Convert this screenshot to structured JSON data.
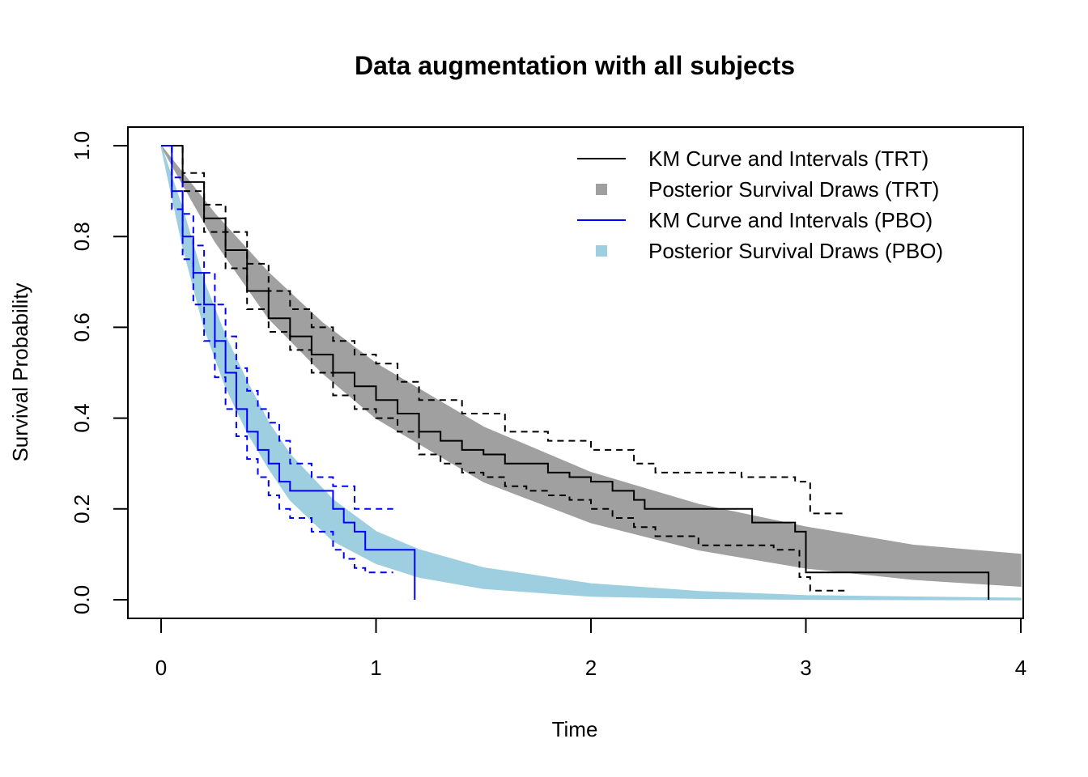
{
  "chart_data": {
    "type": "line",
    "title": "Data augmentation with all subjects",
    "xlabel": "Time",
    "ylabel": "Survival Probability",
    "xlim": [
      0,
      4
    ],
    "ylim": [
      0,
      1
    ],
    "x_ticks": [
      "0",
      "1",
      "2",
      "3",
      "4"
    ],
    "y_ticks": [
      "0.0",
      "0.2",
      "0.4",
      "0.6",
      "0.8",
      "1.0"
    ],
    "grid": false,
    "legend_position": "top-right",
    "legend": [
      {
        "label": "KM Curve and Intervals (TRT)",
        "symbol": "line",
        "color": "#000000"
      },
      {
        "label": "Posterior Survival Draws (TRT)",
        "symbol": "square",
        "color": "#A0A0A0"
      },
      {
        "label": "KM Curve and Intervals (PBO)",
        "symbol": "line",
        "color": "#0000FF"
      },
      {
        "label": "Posterior Survival Draws (PBO)",
        "symbol": "square",
        "color": "#9ECFE0"
      }
    ],
    "series": [
      {
        "name": "Posterior Survival Draws (TRT)",
        "kind": "band",
        "color": "#A0A0A0",
        "x": [
          0,
          0.25,
          0.5,
          0.75,
          1.0,
          1.5,
          2.0,
          2.5,
          3.0,
          3.5,
          4.0
        ],
        "lower": [
          1.0,
          0.79,
          0.62,
          0.5,
          0.4,
          0.26,
          0.17,
          0.11,
          0.07,
          0.045,
          0.03
        ],
        "upper": [
          1.0,
          0.85,
          0.72,
          0.61,
          0.52,
          0.38,
          0.28,
          0.21,
          0.16,
          0.12,
          0.1
        ]
      },
      {
        "name": "Posterior Survival Draws (PBO)",
        "kind": "band",
        "color": "#9ECFE0",
        "x": [
          0,
          0.1,
          0.2,
          0.3,
          0.4,
          0.5,
          0.6,
          0.8,
          1.0,
          1.2,
          1.5,
          2.0,
          2.5,
          3.0,
          4.0
        ],
        "lower": [
          1.0,
          0.78,
          0.6,
          0.47,
          0.37,
          0.29,
          0.22,
          0.13,
          0.08,
          0.05,
          0.025,
          0.008,
          0.003,
          0.001,
          0
        ],
        "upper": [
          1.0,
          0.86,
          0.7,
          0.58,
          0.48,
          0.39,
          0.32,
          0.22,
          0.15,
          0.11,
          0.07,
          0.035,
          0.018,
          0.009,
          0.003
        ]
      },
      {
        "name": "KM Curve (TRT)",
        "kind": "step",
        "color": "#000000",
        "dash": false,
        "x": [
          0,
          0.1,
          0.2,
          0.3,
          0.4,
          0.5,
          0.6,
          0.7,
          0.8,
          0.9,
          1.0,
          1.1,
          1.2,
          1.3,
          1.4,
          1.5,
          1.6,
          1.7,
          1.8,
          1.9,
          2.0,
          2.1,
          2.2,
          2.25,
          2.5,
          2.75,
          2.95,
          3.0,
          3.85,
          3.85
        ],
        "y": [
          1.0,
          0.92,
          0.84,
          0.77,
          0.68,
          0.62,
          0.58,
          0.54,
          0.5,
          0.47,
          0.44,
          0.41,
          0.37,
          0.35,
          0.33,
          0.32,
          0.3,
          0.3,
          0.28,
          0.27,
          0.26,
          0.24,
          0.22,
          0.2,
          0.2,
          0.17,
          0.15,
          0.06,
          0.06,
          0.0
        ]
      },
      {
        "name": "KM Upper Interval (TRT)",
        "kind": "step",
        "color": "#000000",
        "dash": true,
        "x": [
          0,
          0.1,
          0.2,
          0.3,
          0.4,
          0.5,
          0.6,
          0.7,
          0.8,
          0.9,
          1.0,
          1.1,
          1.2,
          1.4,
          1.6,
          1.8,
          2.0,
          2.2,
          2.3,
          2.5,
          2.7,
          2.95,
          3.02,
          3.18
        ],
        "y": [
          1.0,
          0.94,
          0.87,
          0.81,
          0.74,
          0.68,
          0.64,
          0.6,
          0.57,
          0.54,
          0.52,
          0.48,
          0.44,
          0.41,
          0.37,
          0.35,
          0.33,
          0.3,
          0.28,
          0.28,
          0.27,
          0.26,
          0.19,
          0.19
        ]
      },
      {
        "name": "KM Lower Interval (TRT)",
        "kind": "step",
        "color": "#000000",
        "dash": true,
        "x": [
          0,
          0.1,
          0.2,
          0.3,
          0.4,
          0.5,
          0.6,
          0.7,
          0.8,
          0.9,
          1.0,
          1.1,
          1.2,
          1.3,
          1.4,
          1.5,
          1.6,
          1.7,
          1.8,
          1.9,
          2.0,
          2.1,
          2.2,
          2.3,
          2.5,
          2.7,
          2.85,
          2.97,
          3.02,
          3.18
        ],
        "y": [
          1.0,
          0.9,
          0.81,
          0.73,
          0.64,
          0.59,
          0.55,
          0.5,
          0.45,
          0.42,
          0.4,
          0.37,
          0.32,
          0.3,
          0.28,
          0.27,
          0.25,
          0.24,
          0.23,
          0.22,
          0.2,
          0.18,
          0.16,
          0.14,
          0.12,
          0.12,
          0.11,
          0.05,
          0.02,
          0.02
        ]
      },
      {
        "name": "KM Curve (PBO)",
        "kind": "step",
        "color": "#0000FF",
        "dash": false,
        "x": [
          0,
          0.05,
          0.1,
          0.15,
          0.2,
          0.25,
          0.3,
          0.35,
          0.4,
          0.45,
          0.5,
          0.55,
          0.6,
          0.7,
          0.8,
          0.85,
          0.9,
          0.95,
          1.18,
          1.18
        ],
        "y": [
          1.0,
          0.9,
          0.8,
          0.72,
          0.65,
          0.57,
          0.5,
          0.42,
          0.37,
          0.33,
          0.3,
          0.26,
          0.24,
          0.24,
          0.2,
          0.17,
          0.15,
          0.11,
          0.11,
          0.0
        ]
      },
      {
        "name": "KM Upper Interval (PBO)",
        "kind": "step",
        "color": "#0000FF",
        "dash": true,
        "x": [
          0,
          0.05,
          0.1,
          0.15,
          0.2,
          0.25,
          0.3,
          0.35,
          0.4,
          0.45,
          0.5,
          0.55,
          0.6,
          0.7,
          0.8,
          0.9,
          1.08
        ],
        "y": [
          1.0,
          0.93,
          0.85,
          0.78,
          0.72,
          0.65,
          0.58,
          0.51,
          0.46,
          0.42,
          0.39,
          0.35,
          0.3,
          0.27,
          0.25,
          0.2,
          0.2
        ]
      },
      {
        "name": "KM Lower Interval (PBO)",
        "kind": "step",
        "color": "#0000FF",
        "dash": true,
        "x": [
          0,
          0.05,
          0.1,
          0.15,
          0.2,
          0.25,
          0.3,
          0.35,
          0.4,
          0.45,
          0.5,
          0.55,
          0.6,
          0.7,
          0.8,
          0.85,
          0.9,
          0.95,
          1.08
        ],
        "y": [
          1.0,
          0.86,
          0.75,
          0.65,
          0.57,
          0.49,
          0.42,
          0.36,
          0.31,
          0.27,
          0.23,
          0.2,
          0.18,
          0.15,
          0.11,
          0.09,
          0.07,
          0.06,
          0.06
        ]
      }
    ]
  }
}
